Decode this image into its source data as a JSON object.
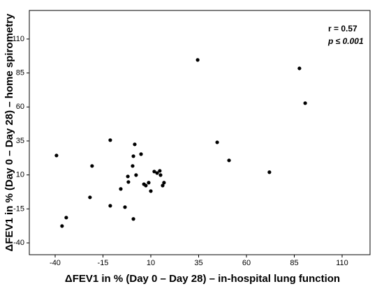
{
  "chart_data": {
    "type": "scatter",
    "x_label": "ΔFEV1 in % (Day 0 – Day 28) – in-hospital lung function",
    "y_label": "ΔFEV1 in % (Day 0 – Day 28) – home spirometry",
    "annotations": [
      "r = 0.57",
      "p ≤ 0.001"
    ],
    "xlim": [
      -53.5,
      124.6
    ],
    "ylim": [
      -48.7,
      131
    ],
    "xticks": [
      -40,
      -15,
      10,
      35,
      60,
      85,
      110
    ],
    "yticks": [
      -40,
      -15,
      10,
      35,
      60,
      85,
      110
    ],
    "color": "#000000",
    "x": [
      -39.3,
      -36.4,
      -34.2,
      -20.7,
      -21.8,
      -11.2,
      -11.2,
      -5.7,
      -3.5,
      -2.0,
      -1.7,
      0.5,
      0.9,
      1.6,
      2.3,
      0.9,
      4.9,
      6.4,
      7.4,
      8.9,
      10.0,
      11.8,
      13.3,
      14.7,
      15.1,
      16.2,
      16.9,
      34.5,
      44.7,
      50.9,
      72.0,
      87.7,
      90.7
    ],
    "y": [
      24.3,
      -27.6,
      -21.4,
      16.6,
      -6.5,
      35.6,
      -12.7,
      -0.3,
      -13.7,
      8.9,
      4.8,
      16.6,
      23.8,
      32.5,
      9.9,
      -22.4,
      25.3,
      3.2,
      2.2,
      4.3,
      -1.9,
      12.5,
      11.4,
      13.0,
      9.9,
      2.2,
      4.3,
      94.6,
      34.0,
      20.7,
      12.0,
      88.4,
      62.8
    ]
  }
}
